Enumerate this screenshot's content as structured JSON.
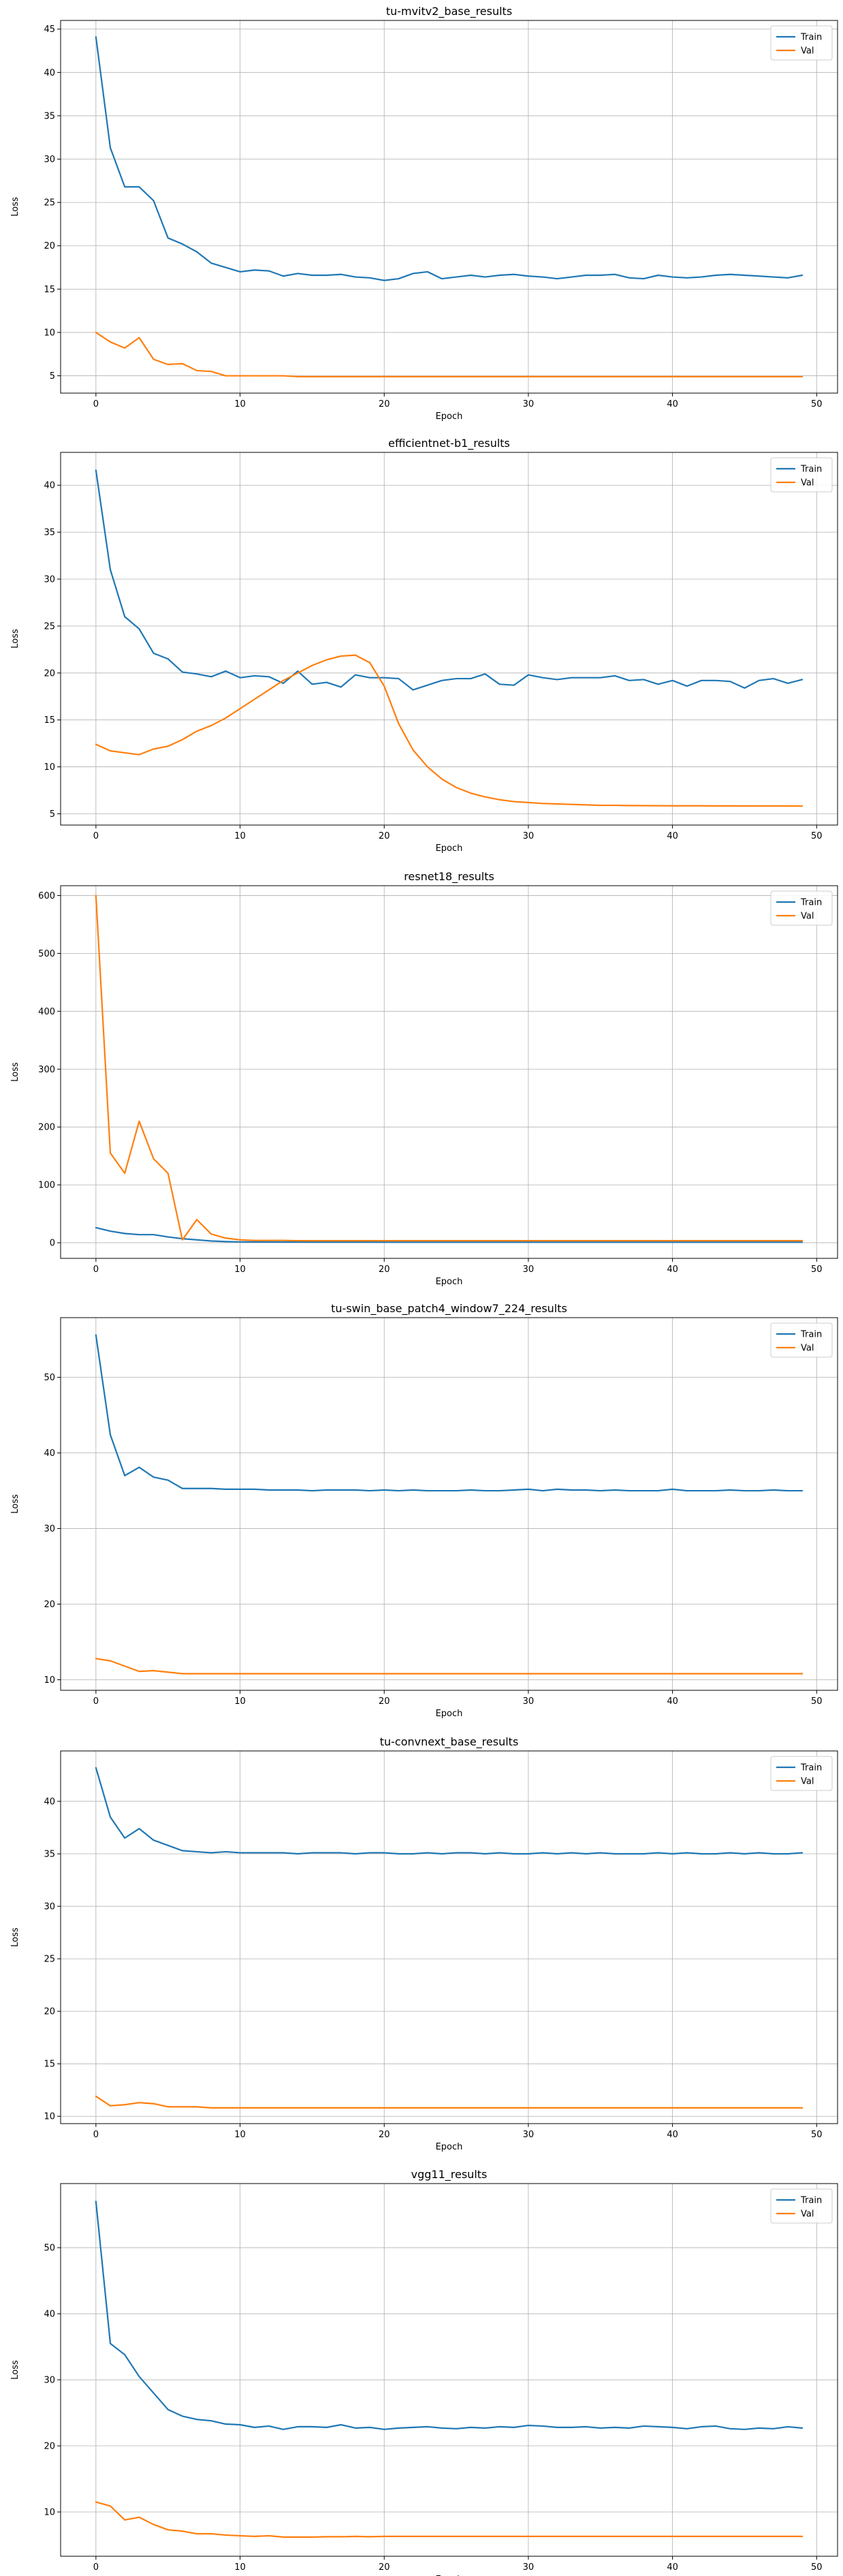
{
  "chart_data": [
    {
      "type": "line",
      "title": "tu-mvitv2_base_results",
      "xlabel": "Epoch",
      "ylabel": "Loss",
      "xlim": [
        -2.45,
        51.45
      ],
      "ylim": [
        3.0,
        46.0
      ],
      "xticks": [
        0,
        10,
        20,
        30,
        40,
        50
      ],
      "yticks": [
        5,
        10,
        15,
        20,
        25,
        30,
        35,
        40,
        45
      ],
      "grid": true,
      "legend": "top-right",
      "series": [
        {
          "name": "Train",
          "color": "#1f77b4",
          "values": [
            44.1,
            31.3,
            26.8,
            26.8,
            25.2,
            20.9,
            20.2,
            19.3,
            18.0,
            17.5,
            17.0,
            17.2,
            17.1,
            16.5,
            16.8,
            16.6,
            16.6,
            16.7,
            16.4,
            16.3,
            16.0,
            16.2,
            16.8,
            17.0,
            16.2,
            16.4,
            16.6,
            16.4,
            16.6,
            16.7,
            16.5,
            16.4,
            16.2,
            16.4,
            16.6,
            16.6,
            16.7,
            16.3,
            16.2,
            16.6,
            16.4,
            16.3,
            16.4,
            16.6,
            16.7,
            16.6,
            16.5,
            16.4,
            16.3,
            16.6
          ]
        },
        {
          "name": "Val",
          "color": "#ff7f0e",
          "values": [
            10.0,
            8.9,
            8.2,
            9.4,
            6.9,
            6.3,
            6.4,
            5.6,
            5.5,
            5.0,
            5.0,
            5.0,
            5.0,
            5.0,
            4.9,
            4.9,
            4.9,
            4.9,
            4.9,
            4.9,
            4.9,
            4.9,
            4.9,
            4.9,
            4.9,
            4.9,
            4.9,
            4.9,
            4.9,
            4.9,
            4.9,
            4.9,
            4.9,
            4.9,
            4.9,
            4.9,
            4.9,
            4.9,
            4.9,
            4.9,
            4.9,
            4.9,
            4.9,
            4.9,
            4.9,
            4.9,
            4.9,
            4.9,
            4.9,
            4.9
          ]
        }
      ]
    },
    {
      "type": "line",
      "title": "efficientnet-b1_results",
      "xlabel": "Epoch",
      "ylabel": "Loss",
      "xlim": [
        -2.45,
        51.45
      ],
      "ylim": [
        3.8,
        43.5
      ],
      "xticks": [
        0,
        10,
        20,
        30,
        40,
        50
      ],
      "yticks": [
        5,
        10,
        15,
        20,
        25,
        30,
        35,
        40
      ],
      "grid": true,
      "legend": "top-right",
      "series": [
        {
          "name": "Train",
          "color": "#1f77b4",
          "values": [
            41.6,
            31.0,
            26.0,
            24.7,
            22.1,
            21.5,
            20.1,
            19.9,
            19.6,
            20.2,
            19.5,
            19.7,
            19.6,
            18.9,
            20.2,
            18.8,
            19.0,
            18.5,
            19.8,
            19.5,
            19.5,
            19.4,
            18.2,
            18.7,
            19.2,
            19.4,
            19.4,
            19.9,
            18.8,
            18.7,
            19.8,
            19.5,
            19.3,
            19.5,
            19.5,
            19.5,
            19.7,
            19.2,
            19.3,
            18.8,
            19.2,
            18.6,
            19.2,
            19.2,
            19.1,
            18.4,
            19.2,
            19.4,
            18.9,
            19.3
          ]
        },
        {
          "name": "Val",
          "color": "#ff7f0e",
          "values": [
            12.4,
            11.7,
            11.5,
            11.3,
            11.9,
            12.2,
            12.9,
            13.8,
            14.4,
            15.2,
            16.2,
            17.2,
            18.2,
            19.2,
            20.0,
            20.8,
            21.4,
            21.8,
            21.9,
            21.1,
            18.6,
            14.6,
            11.8,
            10.0,
            8.7,
            7.8,
            7.2,
            6.8,
            6.5,
            6.3,
            6.2,
            6.1,
            6.05,
            6.0,
            5.95,
            5.9,
            5.9,
            5.88,
            5.87,
            5.86,
            5.85,
            5.85,
            5.85,
            5.84,
            5.84,
            5.83,
            5.83,
            5.83,
            5.83,
            5.82
          ]
        }
      ]
    },
    {
      "type": "line",
      "title": "resnet18_results",
      "xlabel": "Epoch",
      "ylabel": "Loss",
      "xlim": [
        -2.45,
        51.45
      ],
      "ylim": [
        -27,
        617
      ],
      "xticks": [
        0,
        10,
        20,
        30,
        40,
        50
      ],
      "yticks": [
        0,
        100,
        200,
        300,
        400,
        500,
        600
      ],
      "grid": true,
      "legend": "top-right",
      "series": [
        {
          "name": "Train",
          "color": "#1f77b4",
          "values": [
            26,
            20,
            16,
            14,
            14,
            10,
            7,
            5,
            3,
            2,
            1.5,
            1.4,
            1.3,
            1.2,
            1.2,
            1.1,
            1.1,
            1.1,
            1.1,
            1.1,
            1.0,
            1.0,
            1.0,
            1.0,
            1.0,
            1.0,
            1.0,
            1.0,
            1.0,
            1.0,
            1.0,
            1.0,
            1.0,
            1.0,
            1.0,
            1.0,
            1.0,
            1.0,
            1.0,
            1.0,
            1.0,
            1.0,
            1.0,
            1.0,
            1.0,
            1.0,
            1.0,
            1.0,
            1.0,
            1.0
          ]
        },
        {
          "name": "Val",
          "color": "#ff7f0e",
          "values": [
            600,
            155,
            120,
            210,
            145,
            120,
            5,
            40,
            15,
            8,
            5,
            4,
            4,
            4,
            3.5,
            3.5,
            3.5,
            3.5,
            3.5,
            3.5,
            3.5,
            3.5,
            3.5,
            3.5,
            3.5,
            3.5,
            3.5,
            3.5,
            3.5,
            3.5,
            3.5,
            3.5,
            3.5,
            3.5,
            3.5,
            3.5,
            3.5,
            3.5,
            3.5,
            3.5,
            3.5,
            3.5,
            3.5,
            3.5,
            3.5,
            3.5,
            3.5,
            3.5,
            3.5,
            3.5
          ]
        }
      ]
    },
    {
      "type": "line",
      "title": "tu-swin_base_patch4_window7_224_results",
      "xlabel": "Epoch",
      "ylabel": "Loss",
      "xlim": [
        -2.45,
        51.45
      ],
      "ylim": [
        8.6,
        57.9
      ],
      "xticks": [
        0,
        10,
        20,
        30,
        40,
        50
      ],
      "yticks": [
        10,
        20,
        30,
        40,
        50
      ],
      "grid": true,
      "legend": "top-right",
      "series": [
        {
          "name": "Train",
          "color": "#1f77b4",
          "values": [
            55.6,
            42.4,
            37.0,
            38.1,
            36.8,
            36.4,
            35.3,
            35.3,
            35.3,
            35.2,
            35.2,
            35.2,
            35.1,
            35.1,
            35.1,
            35.0,
            35.1,
            35.1,
            35.1,
            35.0,
            35.1,
            35.0,
            35.1,
            35.0,
            35.0,
            35.0,
            35.1,
            35.0,
            35.0,
            35.1,
            35.2,
            35.0,
            35.2,
            35.1,
            35.1,
            35.0,
            35.1,
            35.0,
            35.0,
            35.0,
            35.2,
            35.0,
            35.0,
            35.0,
            35.1,
            35.0,
            35.0,
            35.1,
            35.0,
            35.0
          ]
        },
        {
          "name": "Val",
          "color": "#ff7f0e",
          "values": [
            12.8,
            12.5,
            11.8,
            11.1,
            11.2,
            11.0,
            10.8,
            10.8,
            10.8,
            10.8,
            10.8,
            10.8,
            10.8,
            10.8,
            10.8,
            10.8,
            10.8,
            10.8,
            10.8,
            10.8,
            10.8,
            10.8,
            10.8,
            10.8,
            10.8,
            10.8,
            10.8,
            10.8,
            10.8,
            10.8,
            10.8,
            10.8,
            10.8,
            10.8,
            10.8,
            10.8,
            10.8,
            10.8,
            10.8,
            10.8,
            10.8,
            10.8,
            10.8,
            10.8,
            10.8,
            10.8,
            10.8,
            10.8,
            10.8,
            10.8
          ]
        }
      ]
    },
    {
      "type": "line",
      "title": "tu-convnext_base_results",
      "xlabel": "Epoch",
      "ylabel": "Loss",
      "xlim": [
        -2.45,
        51.45
      ],
      "ylim": [
        9.3,
        44.8
      ],
      "xticks": [
        0,
        10,
        20,
        30,
        40,
        50
      ],
      "yticks": [
        10,
        15,
        20,
        25,
        30,
        35,
        40
      ],
      "grid": true,
      "legend": "top-right",
      "series": [
        {
          "name": "Train",
          "color": "#1f77b4",
          "values": [
            43.2,
            38.5,
            36.5,
            37.4,
            36.3,
            35.8,
            35.3,
            35.2,
            35.1,
            35.2,
            35.1,
            35.1,
            35.1,
            35.1,
            35.0,
            35.1,
            35.1,
            35.1,
            35.0,
            35.1,
            35.1,
            35.0,
            35.0,
            35.1,
            35.0,
            35.1,
            35.1,
            35.0,
            35.1,
            35.0,
            35.0,
            35.1,
            35.0,
            35.1,
            35.0,
            35.1,
            35.0,
            35.0,
            35.0,
            35.1,
            35.0,
            35.1,
            35.0,
            35.0,
            35.1,
            35.0,
            35.1,
            35.0,
            35.0,
            35.1
          ]
        },
        {
          "name": "Val",
          "color": "#ff7f0e",
          "values": [
            11.9,
            11.0,
            11.1,
            11.3,
            11.2,
            10.9,
            10.9,
            10.9,
            10.8,
            10.8,
            10.8,
            10.8,
            10.8,
            10.8,
            10.8,
            10.8,
            10.8,
            10.8,
            10.8,
            10.8,
            10.8,
            10.8,
            10.8,
            10.8,
            10.8,
            10.8,
            10.8,
            10.8,
            10.8,
            10.8,
            10.8,
            10.8,
            10.8,
            10.8,
            10.8,
            10.8,
            10.8,
            10.8,
            10.8,
            10.8,
            10.8,
            10.8,
            10.8,
            10.8,
            10.8,
            10.8,
            10.8,
            10.8,
            10.8,
            10.8
          ]
        }
      ]
    },
    {
      "type": "line",
      "title": "vgg11_results",
      "xlabel": "Epoch",
      "ylabel": "Loss",
      "xlim": [
        -2.45,
        51.45
      ],
      "ylim": [
        3.3,
        59.7
      ],
      "xticks": [
        0,
        10,
        20,
        30,
        40,
        50
      ],
      "yticks": [
        10,
        20,
        30,
        40,
        50
      ],
      "grid": true,
      "legend": "top-right",
      "series": [
        {
          "name": "Train",
          "color": "#1f77b4",
          "values": [
            57.0,
            35.5,
            33.8,
            30.5,
            28.0,
            25.5,
            24.5,
            24.0,
            23.8,
            23.3,
            23.2,
            22.8,
            23.0,
            22.5,
            22.9,
            22.9,
            22.8,
            23.2,
            22.7,
            22.8,
            22.5,
            22.7,
            22.8,
            22.9,
            22.7,
            22.6,
            22.8,
            22.7,
            22.9,
            22.8,
            23.1,
            23.0,
            22.8,
            22.8,
            22.9,
            22.7,
            22.8,
            22.7,
            23.0,
            22.9,
            22.8,
            22.6,
            22.9,
            23.0,
            22.6,
            22.5,
            22.7,
            22.6,
            22.9,
            22.7
          ]
        },
        {
          "name": "Val",
          "color": "#ff7f0e",
          "values": [
            11.5,
            10.9,
            8.8,
            9.2,
            8.1,
            7.3,
            7.1,
            6.7,
            6.7,
            6.5,
            6.4,
            6.3,
            6.4,
            6.2,
            6.2,
            6.2,
            6.25,
            6.25,
            6.3,
            6.25,
            6.3,
            6.3,
            6.3,
            6.3,
            6.3,
            6.3,
            6.3,
            6.3,
            6.3,
            6.3,
            6.3,
            6.3,
            6.3,
            6.3,
            6.3,
            6.3,
            6.3,
            6.3,
            6.3,
            6.3,
            6.3,
            6.3,
            6.3,
            6.3,
            6.3,
            6.3,
            6.3,
            6.3,
            6.3,
            6.3
          ]
        }
      ]
    }
  ]
}
